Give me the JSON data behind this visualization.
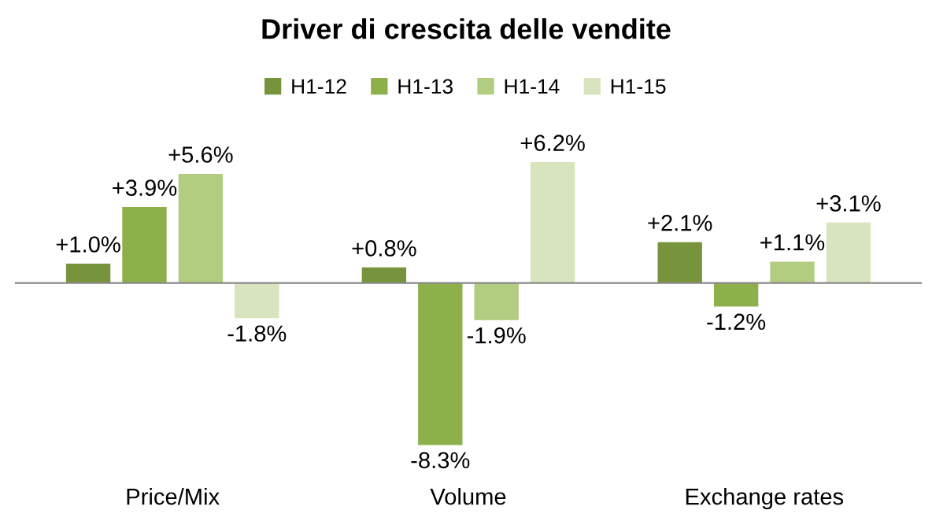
{
  "chart_data": {
    "type": "bar",
    "title": "Driver di crescita delle vendite",
    "categories": [
      "Price/Mix",
      "Volume",
      "Exchange rates"
    ],
    "series": [
      {
        "name": "H1-12",
        "color": "#77933c",
        "values": [
          1.0,
          0.8,
          2.1
        ],
        "value_labels": [
          "+1.0%",
          "+0.8%",
          "+2.1%"
        ]
      },
      {
        "name": "H1-13",
        "color": "#8db04a",
        "values": [
          3.9,
          -8.3,
          -1.2
        ],
        "value_labels": [
          "+3.9%",
          "-8.3%",
          "-1.2%"
        ]
      },
      {
        "name": "H1-14",
        "color": "#b2cd80",
        "values": [
          5.6,
          -1.9,
          1.1
        ],
        "value_labels": [
          "+5.6%",
          "-1.9%",
          "+1.1%"
        ]
      },
      {
        "name": "H1-15",
        "color": "#d7e4bd",
        "values": [
          -1.8,
          6.2,
          3.1
        ],
        "value_labels": [
          "-1.8%",
          "+6.2%",
          "+3.1%"
        ]
      }
    ],
    "legend": "top",
    "grid": false
  }
}
